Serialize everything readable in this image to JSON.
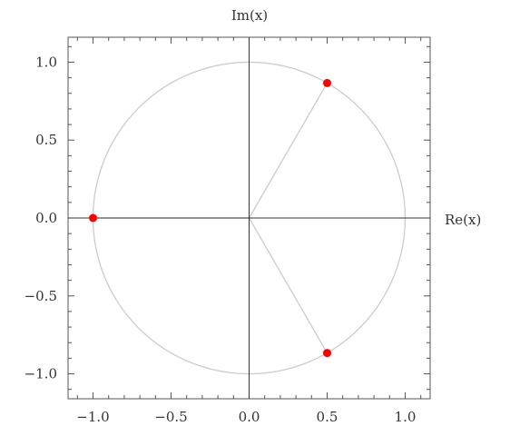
{
  "chart_data": {
    "type": "scatter",
    "title": "",
    "xlabel": "Re(x)",
    "ylabel": "Im(x)",
    "xlim": [
      -1.16,
      1.16
    ],
    "ylim": [
      -1.16,
      1.16
    ],
    "xticks": [
      -1.0,
      -0.5,
      0.0,
      0.5,
      1.0
    ],
    "yticks": [
      -1.0,
      -0.5,
      0.0,
      0.5,
      1.0
    ],
    "xtick_labels": [
      "−1.0",
      "−0.5",
      "0.0",
      "0.5",
      "1.0"
    ],
    "ytick_labels": [
      "−1.0",
      "−0.5",
      "0.0",
      "0.5",
      "1.0"
    ],
    "unit_circle": {
      "center": [
        0,
        0
      ],
      "radius": 1
    },
    "points": [
      {
        "x": 0.5,
        "y": 0.866
      },
      {
        "x": -1.0,
        "y": 0.0
      },
      {
        "x": 0.5,
        "y": -0.866
      }
    ],
    "point_color": "#ff0000",
    "circle_color": "#cccccc",
    "ray_color": "#cccccc",
    "axis_color": "#333333",
    "grid": false
  }
}
